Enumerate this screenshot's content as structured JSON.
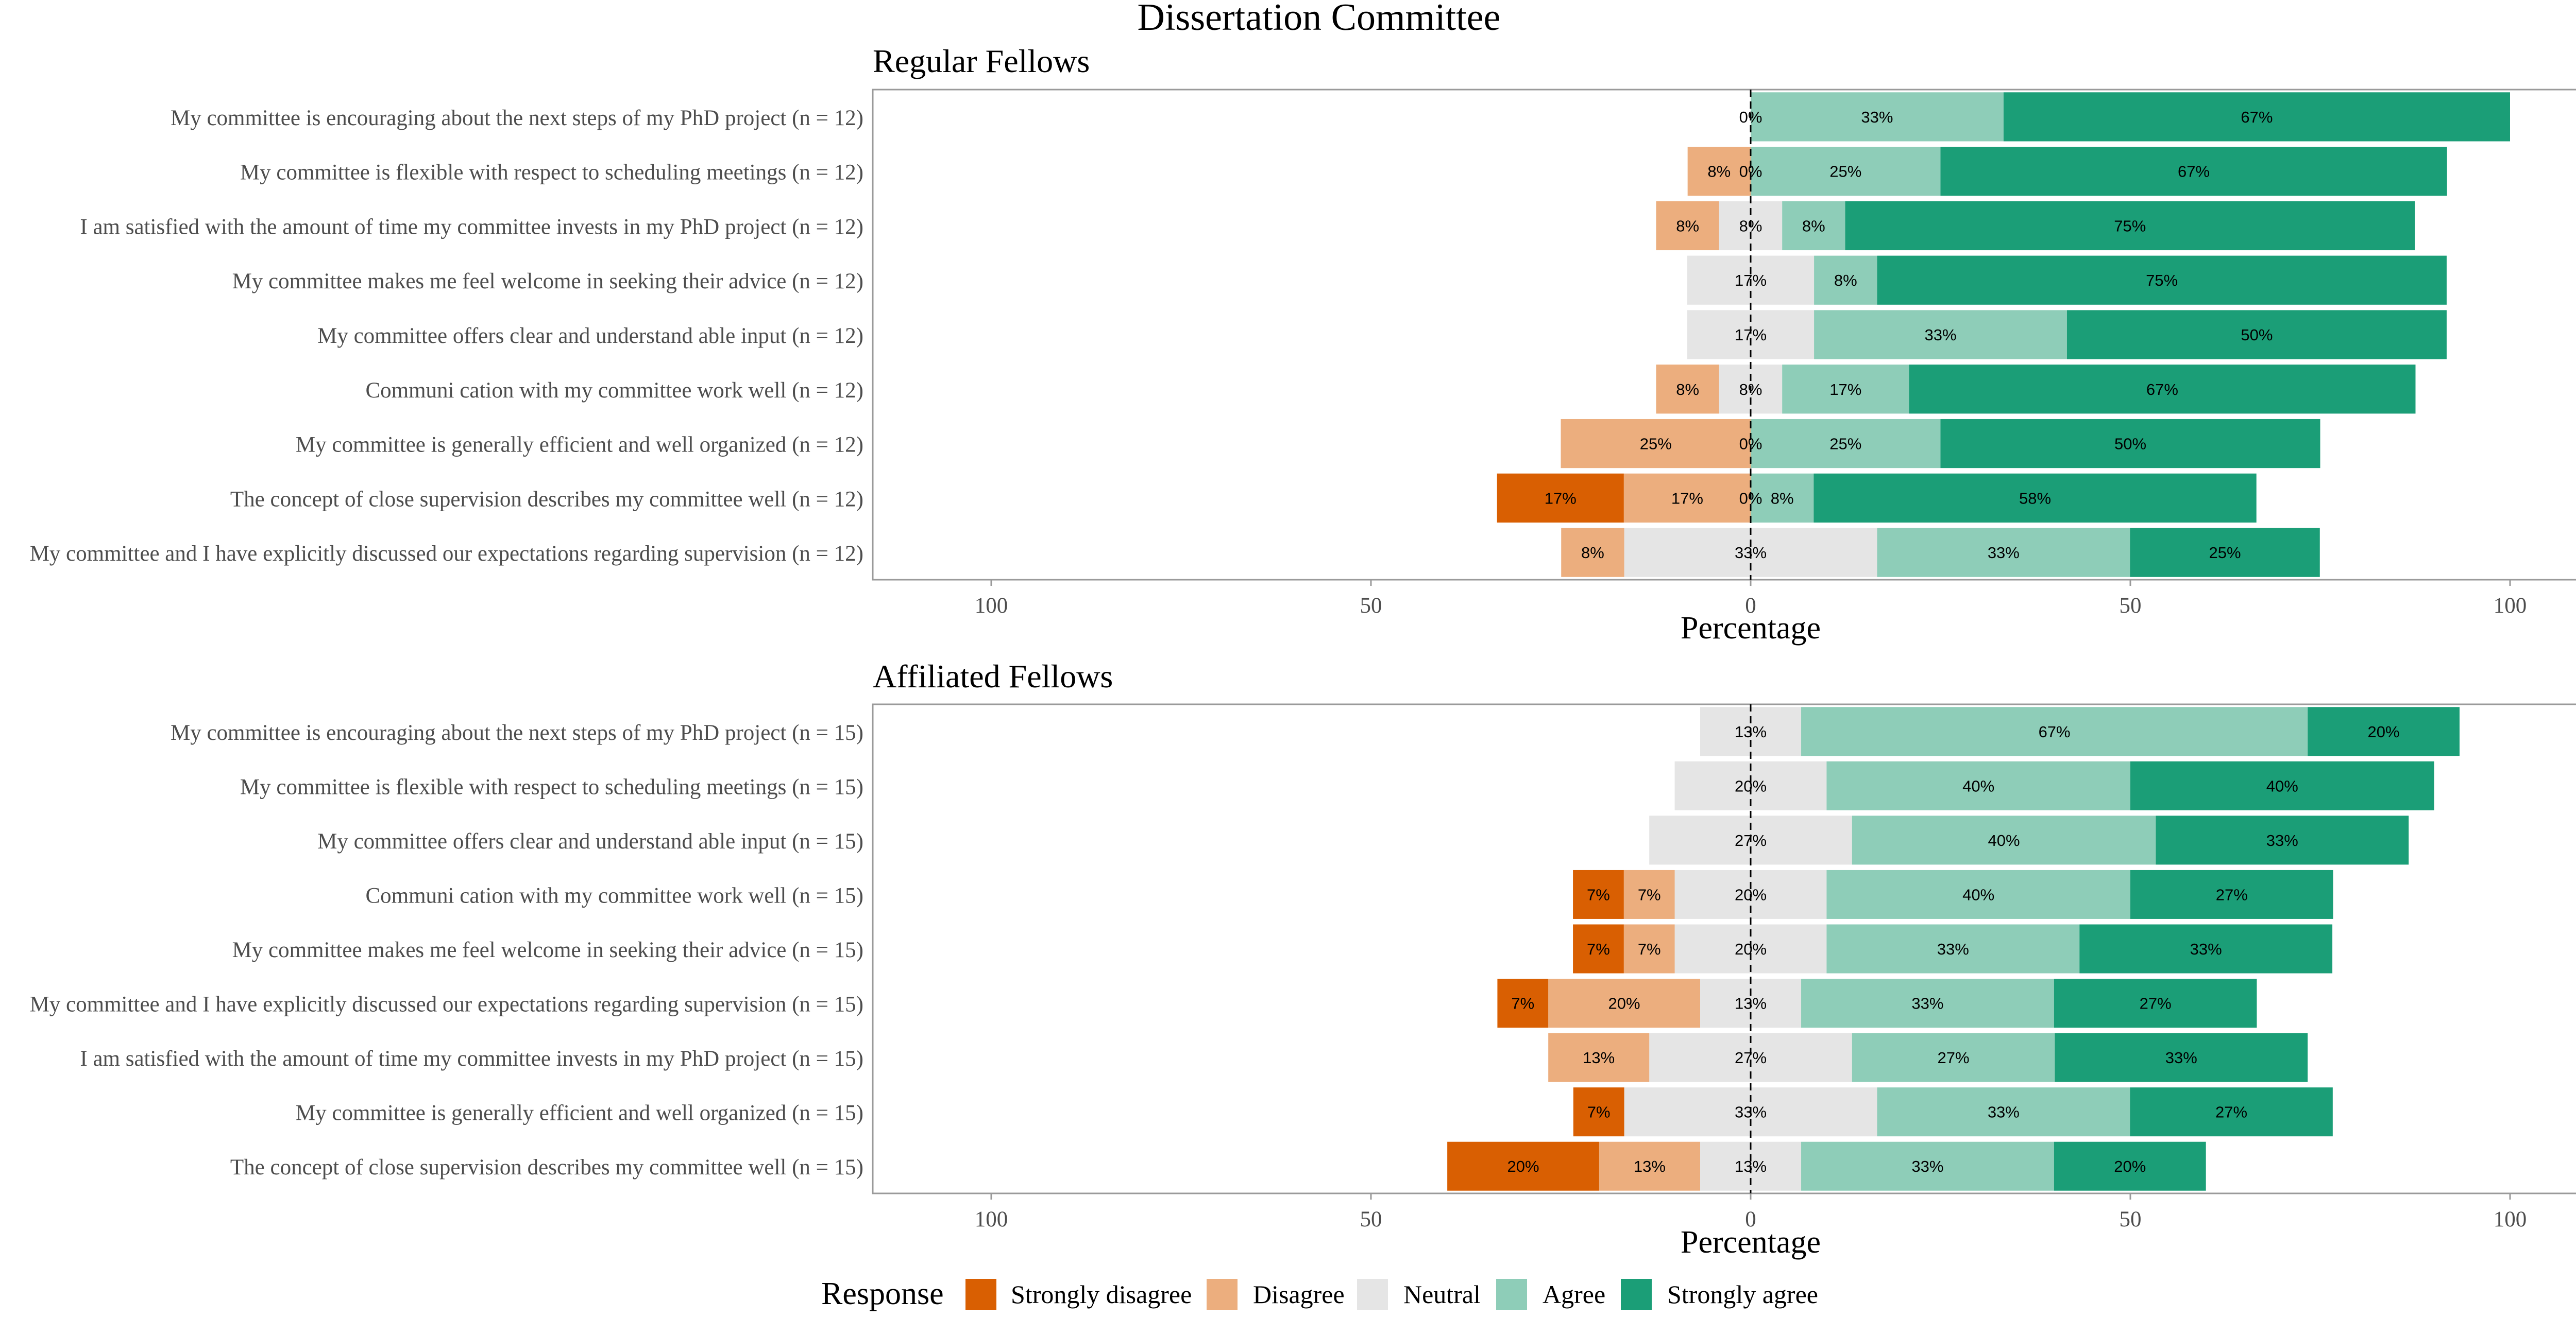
{
  "figure": {
    "title": "Dissertation Committee",
    "legend_title": "Response",
    "categories": [
      "Strongly disagree",
      "Disagree",
      "Neutral",
      "Agree",
      "Strongly agree"
    ],
    "colors": [
      "#d95f02",
      "#ecae7e",
      "#e5e5e5",
      "#8ecdb8",
      "#1b9e77"
    ]
  },
  "chart_data": [
    {
      "type": "bar",
      "orientation": "horizontal",
      "stacked": "diverging",
      "title": "Regular Fellows",
      "xlabel": "Percentage",
      "xlim": [
        -115,
        115
      ],
      "xticks": [
        -100,
        -50,
        0,
        50,
        100
      ],
      "xtick_labels": [
        "100",
        "50",
        "0",
        "50",
        "100"
      ],
      "rows": [
        {
          "label": "My committee is encouraging about the next steps of my PhD project (n = 12)",
          "values": [
            0,
            0,
            0,
            33.3,
            66.7
          ],
          "value_labels": [
            "",
            "",
            "0%",
            "33%",
            "67%"
          ]
        },
        {
          "label": "My committee is flexible with respect to scheduling meetings (n = 12)",
          "values": [
            0,
            8.3,
            0,
            25,
            66.7
          ],
          "value_labels": [
            "",
            "8%",
            "0%",
            "25%",
            "67%"
          ]
        },
        {
          "label": "I am satisfied with the amount of time my committee invests in my PhD project (n = 12)",
          "values": [
            0,
            8.3,
            8.3,
            8.3,
            75
          ],
          "value_labels": [
            "",
            "8%",
            "8%",
            "8%",
            "75%"
          ]
        },
        {
          "label": "My committee makes me feel welcome in seeking their advice (n = 12)",
          "values": [
            0,
            0,
            16.7,
            8.3,
            75
          ],
          "value_labels": [
            "",
            "",
            "17%",
            "8%",
            "75%"
          ]
        },
        {
          "label": "My committee offers clear and understand able input (n = 12)",
          "values": [
            0,
            0,
            16.7,
            33.3,
            50
          ],
          "value_labels": [
            "",
            "",
            "17%",
            "33%",
            "50%"
          ]
        },
        {
          "label": "Communi cation with my committee work well (n = 12)",
          "values": [
            0,
            8.3,
            8.3,
            16.7,
            66.7
          ],
          "value_labels": [
            "",
            "8%",
            "8%",
            "17%",
            "67%"
          ]
        },
        {
          "label": "My committee is generally efficient and well organized (n = 12)",
          "values": [
            0,
            25,
            0,
            25,
            50
          ],
          "value_labels": [
            "",
            "25%",
            "0%",
            "25%",
            "50%"
          ]
        },
        {
          "label": "The concept of close supervision describes my committee well (n = 12)",
          "values": [
            16.7,
            16.7,
            0,
            8.3,
            58.3
          ],
          "value_labels": [
            "17%",
            "17%",
            "0%",
            "8%",
            "58%"
          ]
        },
        {
          "label": "My committee and I have explicitly discussed our expectations regarding supervision (n = 12)",
          "values": [
            0,
            8.3,
            33.3,
            33.3,
            25
          ],
          "value_labels": [
            "",
            "8%",
            "33%",
            "33%",
            "25%"
          ]
        }
      ]
    },
    {
      "type": "bar",
      "orientation": "horizontal",
      "stacked": "diverging",
      "title": "Affiliated Fellows",
      "xlabel": "Percentage",
      "xlim": [
        -115,
        115
      ],
      "xticks": [
        -100,
        -50,
        0,
        50,
        100
      ],
      "xtick_labels": [
        "100",
        "50",
        "0",
        "50",
        "100"
      ],
      "rows": [
        {
          "label": "My committee is encouraging about the next steps of my PhD project (n = 15)",
          "values": [
            0,
            0,
            13.3,
            66.7,
            20
          ],
          "value_labels": [
            "",
            "",
            "13%",
            "67%",
            "20%"
          ]
        },
        {
          "label": "My committee is flexible with respect to scheduling meetings (n = 15)",
          "values": [
            0,
            0,
            20,
            40,
            40
          ],
          "value_labels": [
            "",
            "",
            "20%",
            "40%",
            "40%"
          ]
        },
        {
          "label": "My committee offers clear and understand able input (n = 15)",
          "values": [
            0,
            0,
            26.7,
            40,
            33.3
          ],
          "value_labels": [
            "",
            "",
            "27%",
            "40%",
            "33%"
          ]
        },
        {
          "label": "Communi cation with my committee work well (n = 15)",
          "values": [
            6.7,
            6.7,
            20,
            40,
            26.7
          ],
          "value_labels": [
            "7%",
            "7%",
            "20%",
            "40%",
            "27%"
          ]
        },
        {
          "label": "My committee makes me feel welcome in seeking their advice (n = 15)",
          "values": [
            6.7,
            6.7,
            20,
            33.3,
            33.3
          ],
          "value_labels": [
            "7%",
            "7%",
            "20%",
            "33%",
            "33%"
          ]
        },
        {
          "label": "My committee and I have explicitly discussed our expectations regarding supervision (n = 15)",
          "values": [
            6.7,
            20,
            13.3,
            33.3,
            26.7
          ],
          "value_labels": [
            "7%",
            "20%",
            "13%",
            "33%",
            "27%"
          ]
        },
        {
          "label": "I am satisfied with the amount of time my committee invests in my PhD project (n = 15)",
          "values": [
            0,
            13.3,
            26.7,
            26.7,
            33.3
          ],
          "value_labels": [
            "",
            "13%",
            "27%",
            "27%",
            "33%"
          ]
        },
        {
          "label": "My committee is generally efficient and well organized (n = 15)",
          "values": [
            6.7,
            0,
            33.3,
            33.3,
            26.7
          ],
          "value_labels": [
            "7%",
            "",
            "33%",
            "33%",
            "27%"
          ]
        },
        {
          "label": "The concept of close supervision describes my committee well (n = 15)",
          "values": [
            20,
            13.3,
            13.3,
            33.3,
            20
          ],
          "value_labels": [
            "20%",
            "13%",
            "13%",
            "33%",
            "20%"
          ]
        }
      ]
    }
  ]
}
